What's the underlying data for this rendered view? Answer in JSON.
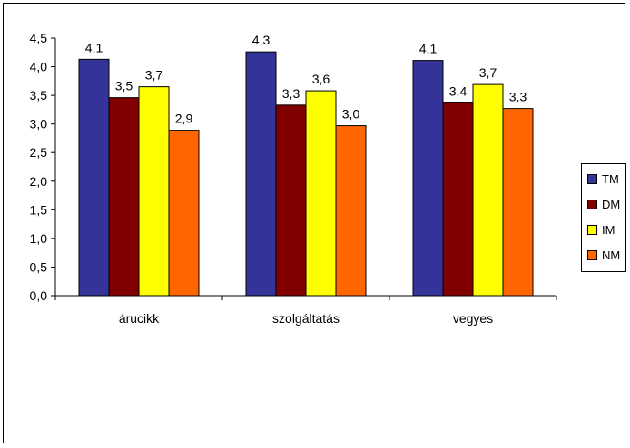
{
  "chart_data": {
    "type": "bar",
    "categories": [
      "árucikk",
      "szolgáltatás",
      "vegyes"
    ],
    "series": [
      {
        "name": "TM",
        "color": "#333399",
        "values": [
          4.13,
          4.26,
          4.11
        ],
        "labels": [
          "4,1",
          "4,3",
          "4,1"
        ]
      },
      {
        "name": "DM",
        "color": "#800000",
        "values": [
          3.46,
          3.33,
          3.37
        ],
        "labels": [
          "3,5",
          "3,3",
          "3,4"
        ]
      },
      {
        "name": "IM",
        "color": "#FFFF00",
        "values": [
          3.65,
          3.58,
          3.69
        ],
        "labels": [
          "3,7",
          "3,6",
          "3,7"
        ]
      },
      {
        "name": "NM",
        "color": "#FF6600",
        "values": [
          2.89,
          2.97,
          3.27
        ],
        "labels": [
          "2,9",
          "3,0",
          "3,3"
        ]
      }
    ],
    "ylim": [
      0,
      4.5
    ],
    "yticks": [
      "0,0",
      "0,5",
      "1,0",
      "1,5",
      "2,0",
      "2,5",
      "3,0",
      "3,5",
      "4,0",
      "4,5"
    ],
    "grid": false,
    "legend_position": "right",
    "title": "",
    "xlabel": "",
    "ylabel": ""
  }
}
